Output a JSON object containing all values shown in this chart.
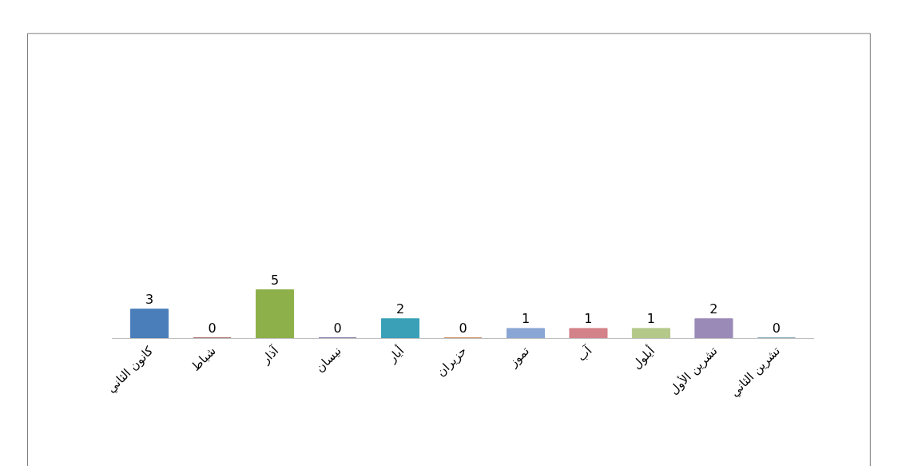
{
  "chart_data": {
    "type": "bar",
    "categories": [
      "كانون الثاني",
      "شباط",
      "آذار",
      "نيسان",
      "أيار",
      "حزيران",
      "تموز",
      "آب",
      "أيلول",
      "تشرين الأول",
      "تشرين الثاني"
    ],
    "values": [
      3,
      0,
      5,
      0,
      2,
      0,
      1,
      1,
      1,
      2,
      0
    ],
    "colors": [
      "#4a7ebb",
      "#8b3a3a",
      "#8db04a",
      "#5c4a8a",
      "#3aa0b8",
      "#c0692a",
      "#8aa6d4",
      "#d4828a",
      "#b4c88a",
      "#9a8ab8",
      "#5a8aa0"
    ],
    "data_labels": true
  }
}
